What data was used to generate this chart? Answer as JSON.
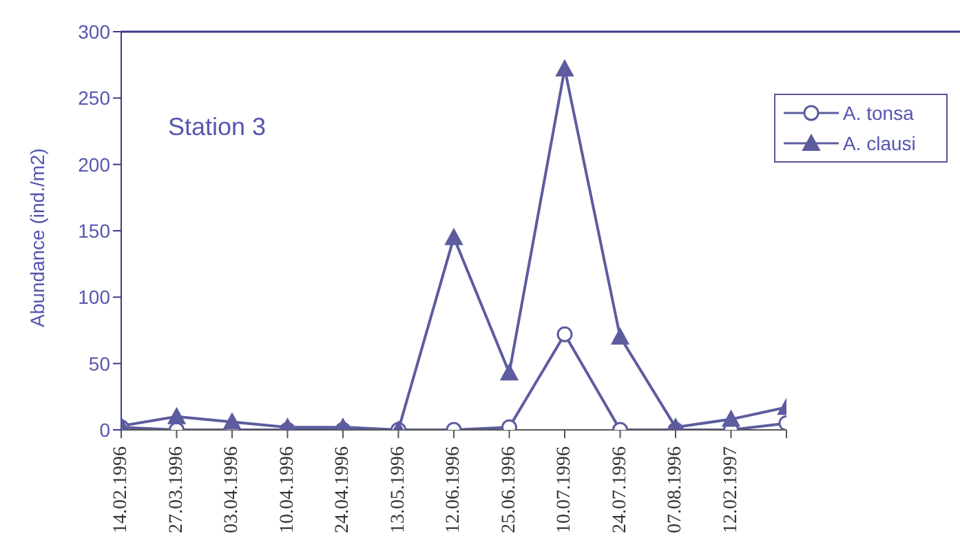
{
  "chart_data": {
    "type": "line",
    "ylabel": "Abundance (ind./m2)",
    "annotations": [
      "Station 3"
    ],
    "categories": [
      "14.02.1996",
      "27.03.1996",
      "03.04.1996",
      "10.04.1996",
      "24.04.1996",
      "13.05.1996",
      "12.06.1996",
      "25.06.1996",
      "10.07.1996",
      "24.07.1996",
      "07.08.1996",
      "12.02.1997",
      null
    ],
    "series": [
      {
        "name": "A. tonsa",
        "color": "#5c5c9e",
        "marker": "circle",
        "values": [
          2,
          0,
          0,
          0,
          0,
          0,
          0,
          2,
          72,
          0,
          0,
          0,
          5
        ]
      },
      {
        "name": "A. clausi",
        "color": "#5c5c9e",
        "marker": "triangle",
        "values": [
          3,
          10,
          6,
          2,
          2,
          0,
          145,
          43,
          272,
          70,
          2,
          8,
          17
        ]
      }
    ],
    "ylim": [
      0,
      300
    ],
    "yticks": [
      0,
      50,
      100,
      150,
      200,
      250,
      300
    ],
    "legend": "top right"
  }
}
